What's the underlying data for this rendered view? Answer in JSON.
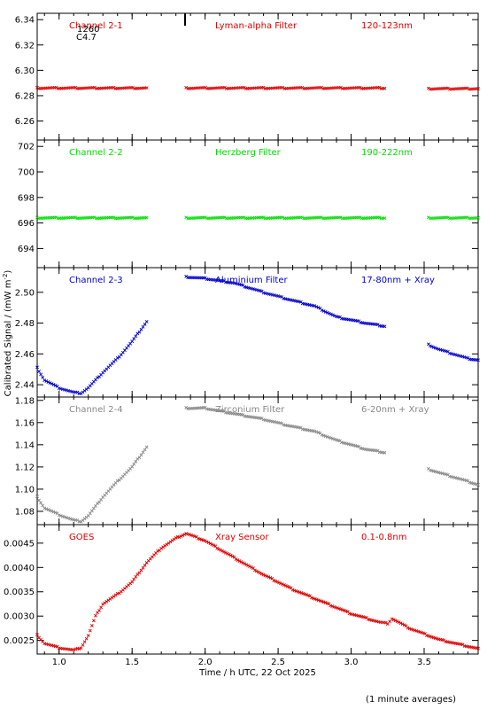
{
  "xlabel": "Time / h UTC, 22 Oct 2025",
  "ylabel": "Calibrated Signal / (mW m",
  "ylabel_sup": "-2",
  "ylabel_close": ")",
  "footnote": "(1 minute averages)",
  "marker_label_top": "1260",
  "marker_label_bottom": "C4.7",
  "chart_data": [
    {
      "type": "scatter",
      "channel": "Channel 2-1",
      "filter": "Lyman-alpha Filter",
      "band": "120-123nm",
      "color": "#dd0000",
      "xlim": [
        0.85,
        3.87
      ],
      "ylim": [
        6.245,
        6.345
      ],
      "yticks": [
        "6.26",
        "6.28",
        "6.30",
        "6.32",
        "6.34"
      ],
      "segments": [
        {
          "x": [
            0.85,
            1.6
          ],
          "y": [
            6.286,
            6.286
          ]
        },
        {
          "x": [
            1.87,
            3.23
          ],
          "y": [
            6.286,
            6.286
          ]
        },
        {
          "x": [
            3.53,
            3.87
          ],
          "y": [
            6.2855,
            6.2855
          ]
        }
      ]
    },
    {
      "type": "scatter",
      "channel": "Channel 2-2",
      "filter": "Herzberg Filter",
      "band": "190-222nm",
      "color": "#00dd00",
      "xlim": [
        0.85,
        3.87
      ],
      "ylim": [
        692.5,
        702.5
      ],
      "yticks": [
        "694",
        "696",
        "698",
        "700",
        "702"
      ],
      "segments": [
        {
          "x": [
            0.85,
            1.6
          ],
          "y": [
            696.4,
            696.4
          ]
        },
        {
          "x": [
            1.87,
            3.23
          ],
          "y": [
            696.4,
            696.4
          ]
        },
        {
          "x": [
            3.53,
            3.87
          ],
          "y": [
            696.4,
            696.4
          ]
        }
      ]
    },
    {
      "type": "scatter",
      "channel": "Channel 2-3",
      "filter": "Aluminium Filter",
      "band": "17-80nm + Xray",
      "color": "#0000cc",
      "xlim": [
        0.85,
        3.87
      ],
      "ylim": [
        2.432,
        2.516
      ],
      "yticks": [
        "2.44",
        "2.46",
        "2.48",
        "2.50"
      ],
      "segments": [
        {
          "x": [
            0.85,
            0.9,
            1.0,
            1.1,
            1.15,
            1.2,
            1.3,
            1.4,
            1.5,
            1.6
          ],
          "y": [
            2.451,
            2.443,
            2.438,
            2.435,
            2.4345,
            2.438,
            2.448,
            2.457,
            2.468,
            2.481
          ]
        },
        {
          "x": [
            1.87,
            2.0,
            2.2,
            2.4,
            2.55,
            2.75,
            2.9,
            3.1,
            3.23
          ],
          "y": [
            2.51,
            2.509,
            2.506,
            2.5,
            2.496,
            2.491,
            2.484,
            2.48,
            2.478
          ]
        },
        {
          "x": [
            3.53,
            3.6,
            3.7,
            3.8,
            3.87
          ],
          "y": [
            2.466,
            2.463,
            2.46,
            2.457,
            2.456
          ]
        }
      ]
    },
    {
      "type": "scatter",
      "channel": "Channel 2-4",
      "filter": "Zirconium Filter",
      "band": "6-20nm + Xray",
      "color": "#888888",
      "xlim": [
        0.85,
        3.87
      ],
      "ylim": [
        1.068,
        1.183
      ],
      "yticks": [
        "1.08",
        "1.10",
        "1.12",
        "1.14",
        "1.16",
        "1.18"
      ],
      "segments": [
        {
          "x": [
            0.85,
            0.9,
            1.0,
            1.1,
            1.15,
            1.2,
            1.3,
            1.4,
            1.5,
            1.6
          ],
          "y": [
            1.093,
            1.083,
            1.077,
            1.072,
            1.071,
            1.076,
            1.093,
            1.107,
            1.12,
            1.138
          ]
        },
        {
          "x": [
            1.87,
            2.0,
            2.2,
            2.4,
            2.55,
            2.75,
            2.9,
            3.1,
            3.23
          ],
          "y": [
            1.173,
            1.173,
            1.168,
            1.163,
            1.158,
            1.152,
            1.144,
            1.136,
            1.133
          ]
        },
        {
          "x": [
            3.53,
            3.6,
            3.7,
            3.8,
            3.87
          ],
          "y": [
            1.118,
            1.115,
            1.111,
            1.107,
            1.104
          ]
        }
      ]
    },
    {
      "type": "scatter",
      "channel": "GOES",
      "filter": "Xray Sensor",
      "band": "0.1-0.8nm",
      "color": "#dd0000",
      "xlim": [
        0.85,
        3.87
      ],
      "ylim": [
        0.00222,
        0.00488
      ],
      "yticks": [
        "0.0025",
        "0.0030",
        "0.0035",
        "0.0040",
        "0.0045"
      ],
      "segments": [
        {
          "x": [
            0.85,
            0.9,
            1.0,
            1.1,
            1.15,
            1.2,
            1.25,
            1.3,
            1.4,
            1.5,
            1.6,
            1.7,
            1.8,
            1.87,
            2.0,
            2.2,
            2.4,
            2.6,
            2.8,
            3.0,
            3.2,
            3.25,
            3.28,
            3.4,
            3.6,
            3.87
          ],
          "y": [
            0.00261,
            0.00244,
            0.00235,
            0.0023,
            0.00235,
            0.0026,
            0.003,
            0.00325,
            0.00345,
            0.0037,
            0.0041,
            0.0044,
            0.0046,
            0.0047,
            0.00455,
            0.0042,
            0.00385,
            0.00355,
            0.0033,
            0.00305,
            0.00287,
            0.00285,
            0.00295,
            0.00275,
            0.00252,
            0.00233
          ]
        }
      ]
    }
  ]
}
